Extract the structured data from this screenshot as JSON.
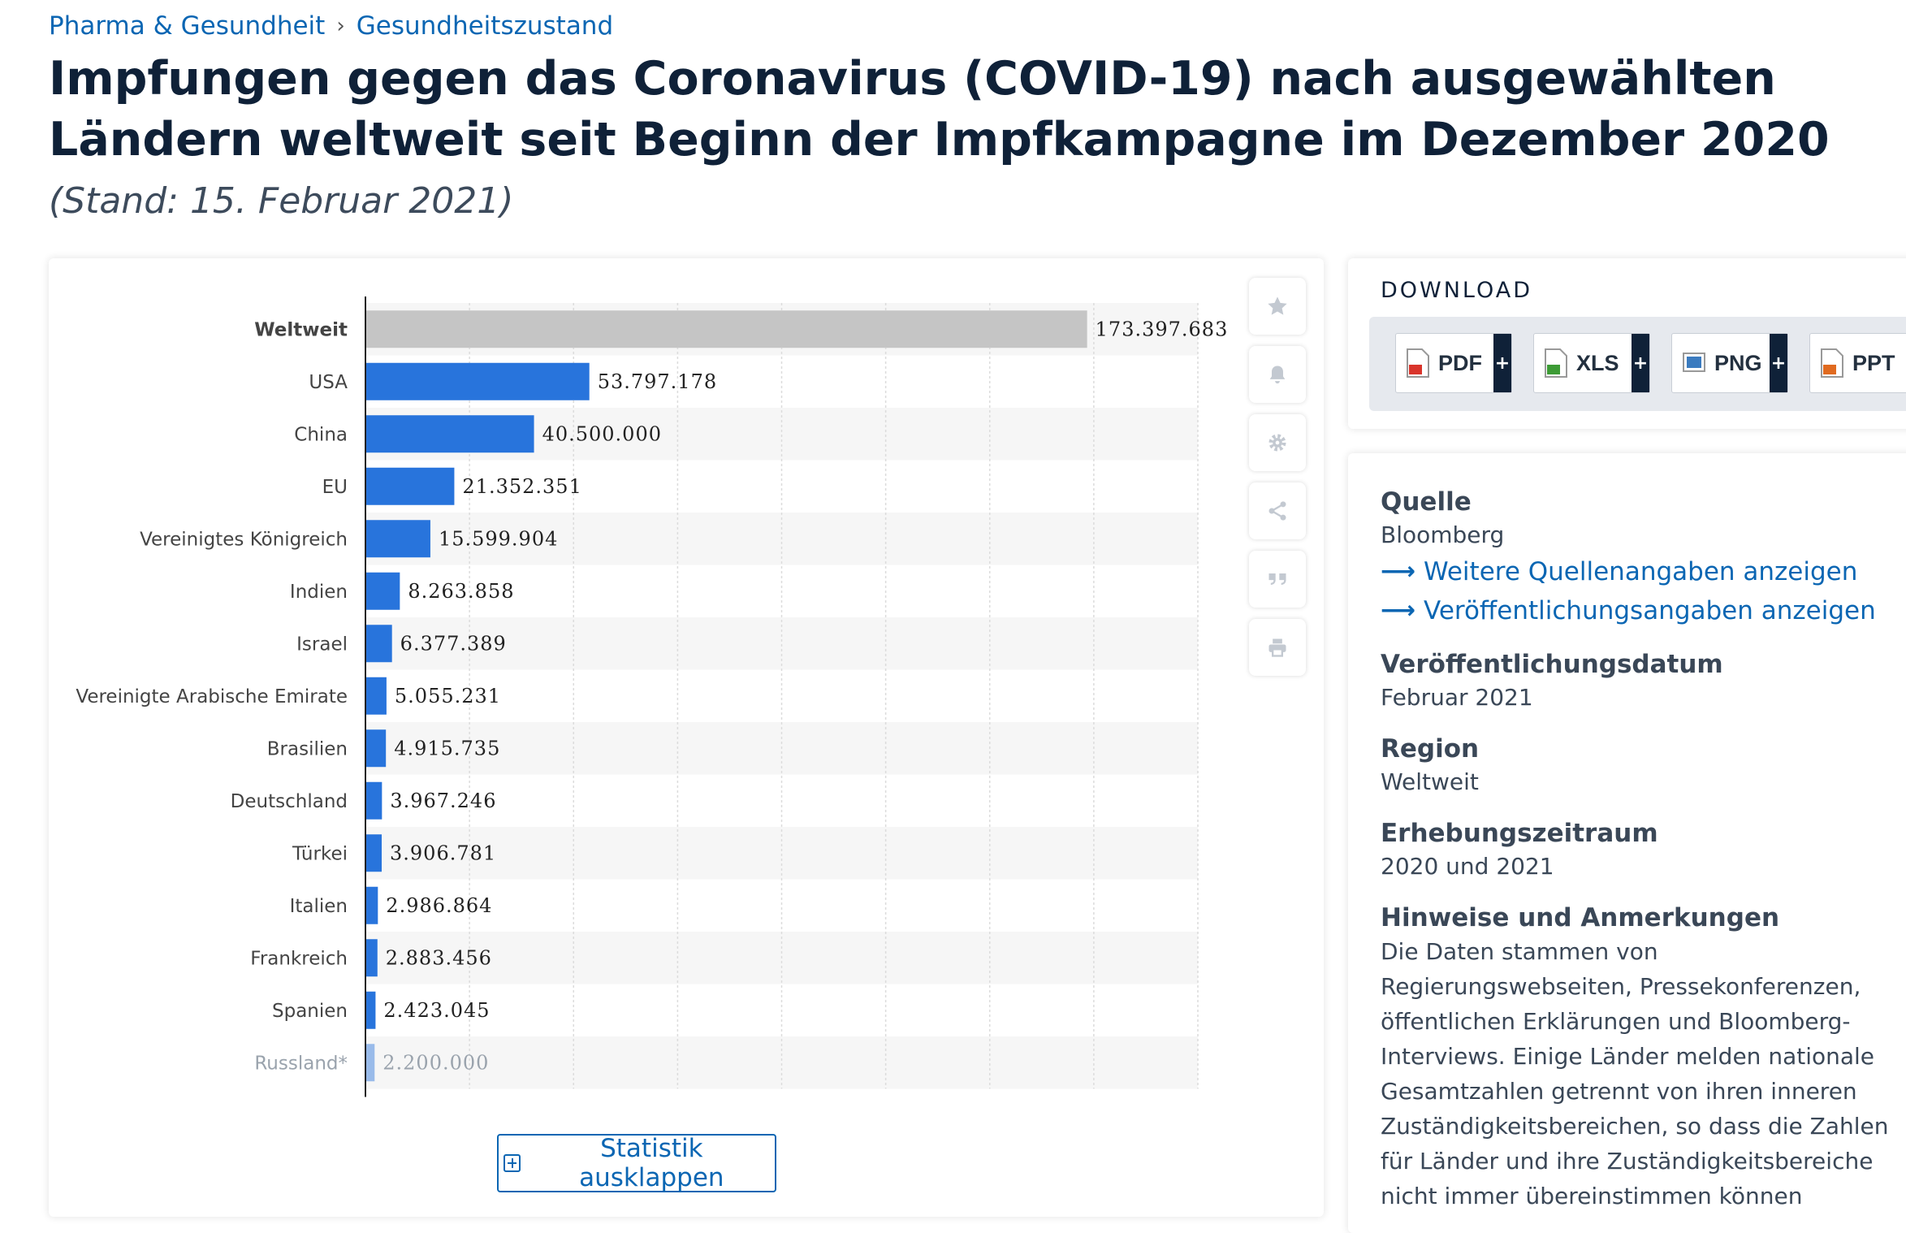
{
  "breadcrumb": {
    "category": "Pharma & Gesundheit",
    "separator": "›",
    "topic": "Gesundheitszustand"
  },
  "title": "Impfungen gegen das Coronavirus (COVID-19) nach ausgewählten Ländern weltweit seit Beginn der Impfkampagne im Dezember 2020",
  "subtitle": "(Stand: 15. Februar 2021)",
  "chart_data": {
    "type": "bar",
    "orientation": "horizontal",
    "title": "",
    "xlabel": "",
    "ylabel": "",
    "xlim": [
      0,
      200000000
    ],
    "grid": true,
    "categories": [
      "Weltweit",
      "USA",
      "China",
      "EU",
      "Vereinigtes Königreich",
      "Indien",
      "Israel",
      "Vereinigte Arabische Emirate",
      "Brasilien",
      "Deutschland",
      "Türkei",
      "Italien",
      "Frankreich",
      "Spanien",
      "Russland*"
    ],
    "values": [
      173397683,
      53797178,
      40500000,
      21352351,
      15599904,
      8263858,
      6377389,
      5055231,
      4915735,
      3967246,
      3906781,
      2986864,
      2883456,
      2423045,
      2200000
    ],
    "labels": [
      "173.397.683",
      "53.797.178",
      "40.500.000",
      "21.352.351",
      "15.599.904",
      "8.263.858",
      "6.377.389",
      "5.055.231",
      "4.915.735",
      "3.967.246",
      "3.906.781",
      "2.986.864",
      "2.883.456",
      "2.423.045",
      "2.200.000"
    ],
    "colors": {
      "highlight": "#c5c5c5",
      "bar": "#2874dc"
    }
  },
  "side_icons": [
    "star-icon",
    "bell-icon",
    "gear-icon",
    "share-icon",
    "quote-icon",
    "print-icon"
  ],
  "expand_button": {
    "label": "Statistik ausklappen"
  },
  "download": {
    "title": "DOWNLOAD",
    "buttons": [
      {
        "label": "PDF",
        "plus": "+",
        "color": "#d9342b"
      },
      {
        "label": "XLS",
        "plus": "+",
        "color": "#3d9b35"
      },
      {
        "label": "PNG",
        "plus": "+",
        "color": "#3b7bbf"
      },
      {
        "label": "PPT",
        "plus": "+",
        "color": "#e06a1f"
      }
    ]
  },
  "info": {
    "quelle_h": "Quelle",
    "quelle": "Bloomberg",
    "link1": "Weitere Quellenangaben anzeigen",
    "link2": "Veröffentlichungsangaben anzeigen",
    "date_h": "Veröffentlichungsdatum",
    "date": "Februar 2021",
    "region_h": "Region",
    "region": "Weltweit",
    "period_h": "Erhebungszeitraum",
    "period": "2020 und 2021",
    "notes_h": "Hinweise und Anmerkungen",
    "notes": "Die Daten stammen von Regierungswebseiten, Pressekonferenzen, öffentlichen Erklärungen und Bloomberg-Interviews. Einige Länder melden nationale Gesamtzahlen getrennt von ihren inneren Zuständigkeitsbereichen, so dass die Zahlen für Länder und ihre Zuständigkeitsbereiche nicht immer übereinstimmen können"
  }
}
